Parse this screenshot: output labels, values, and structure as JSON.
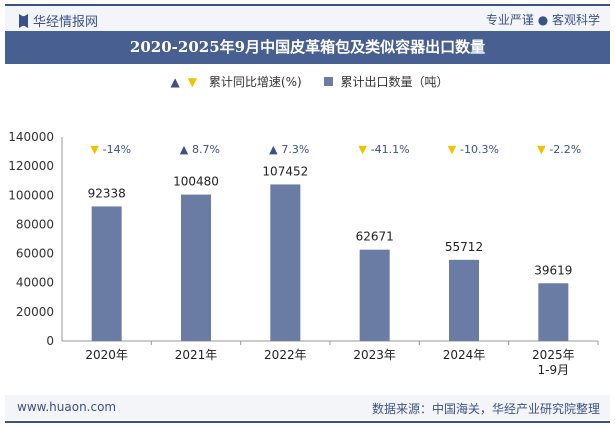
{
  "header": {
    "logo": "华经情报网",
    "slogan": "专业严谨 ● 客观科学"
  },
  "footer": {
    "website": "www.huaon.com",
    "source": "数据来源：中国海关，华经产业研究院整理"
  },
  "colors": {
    "bar": "#6a7ba4",
    "up": "#3c5285",
    "down": "#f2c200"
  },
  "chart_data": {
    "type": "bar",
    "title": "2020-2025年9月中国皮革箱包及类似容器出口数量",
    "categories": [
      "2020年",
      "2021年",
      "2022年",
      "2023年",
      "2024年",
      "2025年\n1-9月"
    ],
    "series": [
      {
        "name": "累计出口数量（吨）",
        "values": [
          92338,
          100480,
          107452,
          62671,
          55712,
          39619
        ]
      },
      {
        "name": "累计同比增速(%)",
        "values": [
          -14,
          8.7,
          7.3,
          -41.1,
          -10.3,
          -2.2
        ]
      }
    ],
    "growth_labels": [
      "-14%",
      "8.7%",
      "7.3%",
      "-41.1%",
      "-10.3%",
      "-2.2%"
    ],
    "yticks": [
      0,
      20000,
      40000,
      60000,
      80000,
      100000,
      120000,
      140000
    ],
    "ylim": [
      0,
      140000
    ],
    "legend_position": "top"
  }
}
